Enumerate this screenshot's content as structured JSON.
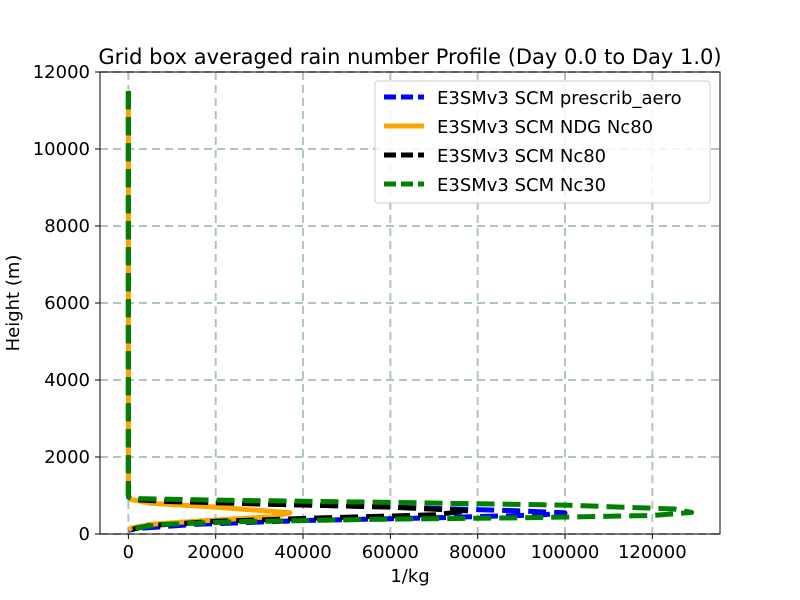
{
  "chart_data": {
    "type": "line",
    "title": "Grid box averaged rain number Profile (Day 0.0 to Day 1.0)",
    "xlabel": "1/kg",
    "ylabel": "Height (m)",
    "xlim": [
      -6500,
      135500
    ],
    "ylim": [
      0,
      12000
    ],
    "xticks": [
      0,
      20000,
      40000,
      60000,
      80000,
      100000,
      120000
    ],
    "yticks": [
      0,
      2000,
      4000,
      6000,
      8000,
      10000,
      12000
    ],
    "grid": true,
    "legend_position": "top-right",
    "series": [
      {
        "name": "E3SMv3 SCM prescrib_aero",
        "color": "#0000ff",
        "style": "dashed",
        "x": [
          0,
          0,
          0,
          0,
          0,
          0,
          0,
          100,
          1500,
          8000,
          25000,
          60000,
          90000,
          100000,
          95000,
          70000,
          40000,
          15000,
          3000,
          0
        ],
        "y": [
          11500,
          10000,
          8000,
          6000,
          4000,
          2000,
          1000,
          950,
          900,
          860,
          800,
          700,
          600,
          550,
          500,
          420,
          350,
          250,
          150,
          100
        ]
      },
      {
        "name": "E3SMv3 SCM NDG Nc80",
        "color": "#ffa500",
        "style": "solid",
        "x": [
          0,
          0,
          0,
          0,
          0,
          0,
          0,
          500,
          5000,
          20000,
          37000,
          33000,
          18000,
          5000,
          500,
          0
        ],
        "y": [
          11500,
          10000,
          8000,
          6000,
          4000,
          2000,
          1000,
          900,
          800,
          700,
          550,
          450,
          350,
          250,
          150,
          100
        ]
      },
      {
        "name": "E3SMv3 SCM Nc80",
        "color": "#000000",
        "style": "dashed",
        "x": [
          0,
          0,
          0,
          0,
          0,
          0,
          0,
          100,
          1000,
          8000,
          30000,
          60000,
          78000,
          70000,
          45000,
          20000,
          5000,
          0
        ],
        "y": [
          11500,
          10000,
          8000,
          6000,
          4000,
          2000,
          1000,
          950,
          900,
          850,
          780,
          700,
          600,
          500,
          420,
          330,
          220,
          100
        ]
      },
      {
        "name": "E3SMv3 SCM Nc30",
        "color": "#008000",
        "style": "dashed",
        "x": [
          0,
          0,
          0,
          0,
          0,
          0,
          0,
          100,
          2000,
          20000,
          60000,
          100000,
          125000,
          129000,
          120000,
          90000,
          55000,
          25000,
          8000,
          1000,
          0
        ],
        "y": [
          11500,
          10000,
          8000,
          6000,
          4000,
          2000,
          1000,
          950,
          920,
          880,
          820,
          750,
          650,
          560,
          480,
          420,
          380,
          320,
          250,
          150,
          100
        ]
      }
    ]
  }
}
